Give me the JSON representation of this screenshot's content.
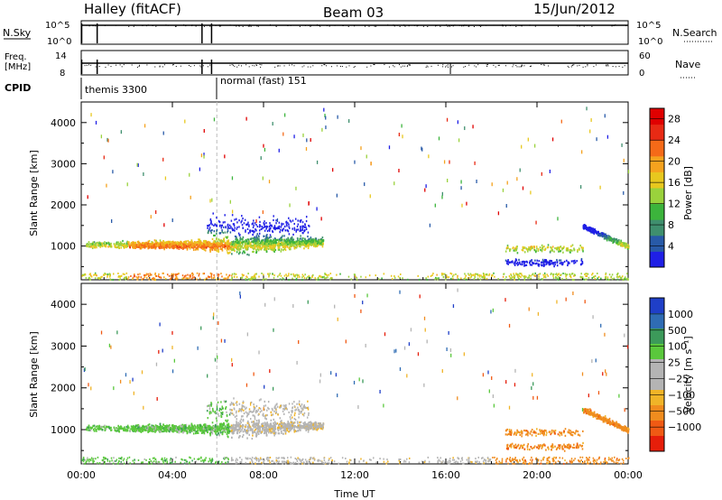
{
  "header": {
    "station": "Halley (fitACF)",
    "beam": "Beam 03",
    "date": "15/Jun/2012"
  },
  "top_strip": {
    "left_label": "N.Sky",
    "left_ticks": [
      "10^5",
      "10^0"
    ],
    "right_label": "N.Search",
    "right_ticks": [
      "10^5",
      "10^0"
    ]
  },
  "freq_strip": {
    "left_label_1": "Freq.",
    "left_label_2": "[MHz]",
    "left_ticks": [
      "14",
      "8"
    ],
    "right_label": "Nave",
    "right_ticks": [
      "60",
      "0"
    ]
  },
  "cpid_strip": {
    "label": "CPID",
    "modes": [
      {
        "start_hour": 0.0,
        "text": "themis 3300"
      },
      {
        "start_hour": 5.95,
        "text": "normal (fast) 151"
      }
    ]
  },
  "chart_data": [
    {
      "type": "heatmap",
      "panel": "power",
      "xlabel": "",
      "ylabel": "Slant Range [km]",
      "xlim": [
        0,
        24
      ],
      "ylim": [
        180,
        4500
      ],
      "yticks": [
        1000,
        2000,
        3000,
        4000
      ],
      "colorbar": {
        "label": "Power [dB]",
        "tick_labels": [
          "4",
          "8",
          "12",
          "16",
          "20",
          "24",
          "28"
        ],
        "colors": [
          "#1f1fe6",
          "#285aa8",
          "#3f8f6e",
          "#3cb43c",
          "#9ad23c",
          "#e8c81e",
          "#f5a21e",
          "#f56a18",
          "#e82a14",
          "#e00000"
        ]
      },
      "regions": [
        {
          "t0": 0.2,
          "t1": 10.6,
          "r_center": 1050,
          "r_spread": 180,
          "density": "high",
          "peak_hour": 6.5
        },
        {
          "t0": 18.6,
          "t1": 22.0,
          "r_center": 850,
          "r_spread": 300,
          "density": "medium"
        },
        {
          "t0": 22.0,
          "t1": 24.0,
          "r_center": 1250,
          "r_spread": 150,
          "density": "medium"
        }
      ]
    },
    {
      "type": "heatmap",
      "panel": "velocity",
      "xlabel": "Time UT",
      "ylabel": "Slant Range [km]",
      "xlim": [
        0,
        24
      ],
      "ylim": [
        180,
        4500
      ],
      "yticks": [
        1000,
        2000,
        3000,
        4000
      ],
      "x_tick_labels": [
        "00:00",
        "04:00",
        "08:00",
        "12:00",
        "16:00",
        "20:00",
        "00:00"
      ],
      "colorbar": {
        "label": "Velocity [m s⁻¹]",
        "tick_labels": [
          "1000",
          "500",
          "100",
          "25",
          "−25",
          "−100",
          "−500",
          "−1000"
        ],
        "colors": [
          "#1f3fc8",
          "#2f6cb4",
          "#3c9a5a",
          "#5ac83c",
          "#b4b4b4",
          "#b4b4b4",
          "#f0b428",
          "#f08c1e",
          "#f05a14",
          "#e61e0a"
        ]
      },
      "regions": [
        {
          "t0": 0.2,
          "t1": 10.6,
          "r_center": 1050,
          "r_spread": 180,
          "density": "high"
        },
        {
          "t0": 18.6,
          "t1": 22.0,
          "r_center": 850,
          "r_spread": 300,
          "density": "medium"
        },
        {
          "t0": 22.0,
          "t1": 24.0,
          "r_center": 1250,
          "r_spread": 150,
          "density": "medium"
        }
      ]
    }
  ]
}
